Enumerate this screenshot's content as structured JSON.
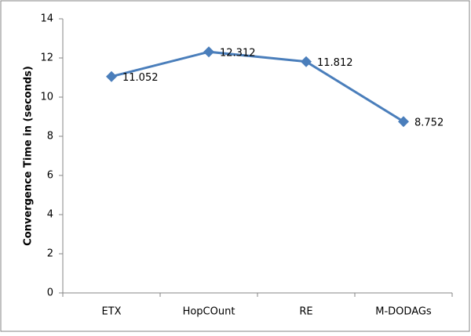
{
  "chart_data": {
    "type": "line",
    "y_label": "Convergence Time in (seconds)",
    "categories": [
      "ETX",
      "HopCOunt",
      "RE",
      "M-DODAGs"
    ],
    "values": [
      11.052,
      12.312,
      11.812,
      8.752
    ],
    "color": "#4a7ebb",
    "ylim": [
      0,
      14
    ],
    "yticks": [
      0,
      2,
      4,
      6,
      8,
      10,
      12,
      14
    ],
    "grid": false,
    "data_labels": true
  }
}
